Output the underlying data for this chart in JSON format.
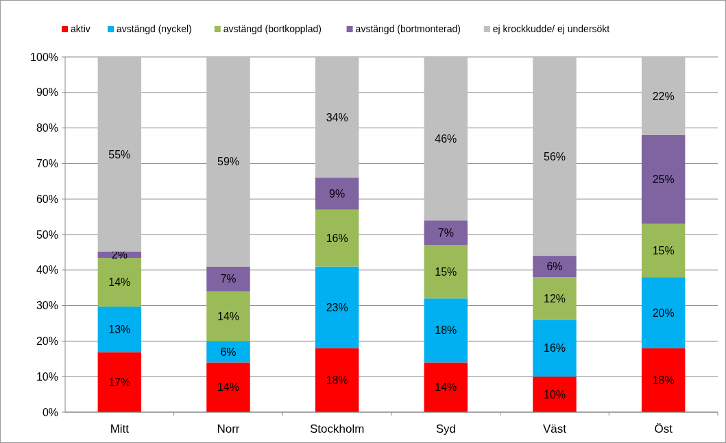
{
  "chart_data": {
    "type": "bar",
    "stacked": true,
    "categories": [
      "Mitt",
      "Norr",
      "Stockholm",
      "Syd",
      "Väst",
      "Öst"
    ],
    "series": [
      {
        "name": "aktiv",
        "color": "#ff0000",
        "values": [
          16.9,
          14,
          18,
          14,
          10,
          18
        ],
        "value_labels": [
          "17%",
          "14%",
          "18%",
          "14%",
          "10%",
          "18%"
        ]
      },
      {
        "name": "avstängd (nyckel)",
        "color": "#00b0f0",
        "values": [
          12.8,
          6,
          23,
          18,
          16,
          20
        ],
        "value_labels": [
          "13%",
          "6%",
          "23%",
          "18%",
          "16%",
          "20%"
        ]
      },
      {
        "name": "avstängd (bortkopplad)",
        "color": "#9bbb59",
        "values": [
          13.7,
          14,
          16,
          15,
          12,
          15
        ],
        "value_labels": [
          "14%",
          "14%",
          "16%",
          "15%",
          "12%",
          "15%"
        ]
      },
      {
        "name": "avstängd (bortmonterad)",
        "color": "#8064a2",
        "values": [
          1.8,
          7,
          9,
          7,
          6,
          25
        ],
        "value_labels": [
          "2%",
          "7%",
          "9%",
          "7%",
          "6%",
          "25%"
        ]
      },
      {
        "name": "ej krockkudde/ ej undersökt",
        "color": "#bfbfbf",
        "values": [
          54.8,
          59,
          34,
          46,
          56,
          22
        ],
        "value_labels": [
          "55%",
          "59%",
          "34%",
          "46%",
          "56%",
          "22%"
        ]
      }
    ],
    "ylim": [
      0,
      100
    ],
    "yticks": [
      {
        "value": 0,
        "label": "0%"
      },
      {
        "value": 10,
        "label": "10%"
      },
      {
        "value": 20,
        "label": "20%"
      },
      {
        "value": 30,
        "label": "30%"
      },
      {
        "value": 40,
        "label": "40%"
      },
      {
        "value": 50,
        "label": "50%"
      },
      {
        "value": 60,
        "label": "60%"
      },
      {
        "value": 70,
        "label": "70%"
      },
      {
        "value": 80,
        "label": "80%"
      },
      {
        "value": 90,
        "label": "90%"
      },
      {
        "value": 100,
        "label": "100%"
      }
    ],
    "grid": "y",
    "legend": "top"
  }
}
